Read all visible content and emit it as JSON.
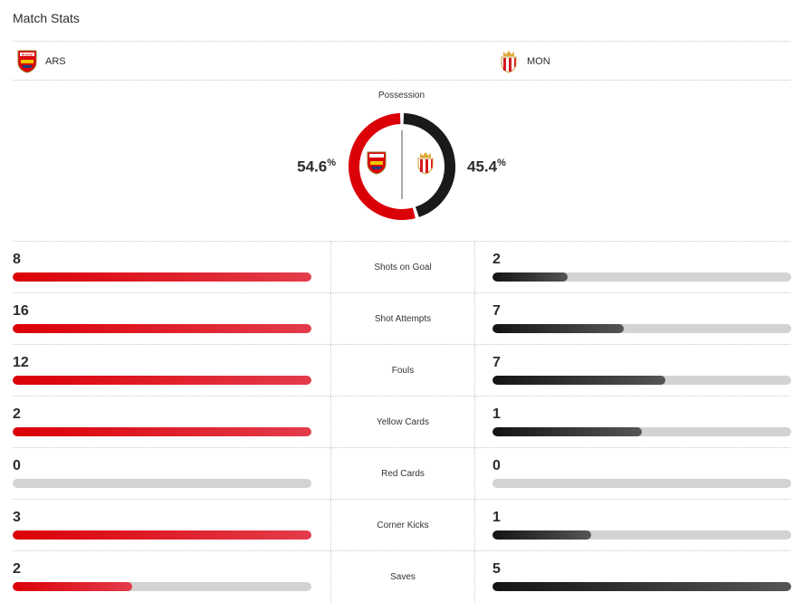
{
  "header": {
    "title": "Match Stats"
  },
  "teams": {
    "home": {
      "abbr": "ARS",
      "logo_icon": "arsenal-crest-icon",
      "logo_text": "Arsenal",
      "color": "#db0007"
    },
    "away": {
      "abbr": "MON",
      "logo_icon": "monaco-crest-icon",
      "color": "#1a1a1a"
    }
  },
  "possession": {
    "label": "Possession",
    "home_value": "54.6",
    "away_value": "45.4",
    "unit": "%",
    "home_fraction": 0.546
  },
  "stats": [
    {
      "label": "Shots on Goal",
      "home": "8",
      "away": "2",
      "home_fill": 1.0,
      "away_fill": 0.25
    },
    {
      "label": "Shot Attempts",
      "home": "16",
      "away": "7",
      "home_fill": 1.0,
      "away_fill": 0.44
    },
    {
      "label": "Fouls",
      "home": "12",
      "away": "7",
      "home_fill": 1.0,
      "away_fill": 0.58
    },
    {
      "label": "Yellow Cards",
      "home": "2",
      "away": "1",
      "home_fill": 1.0,
      "away_fill": 0.5
    },
    {
      "label": "Red Cards",
      "home": "0",
      "away": "0",
      "home_fill": 0,
      "away_fill": 0
    },
    {
      "label": "Corner Kicks",
      "home": "3",
      "away": "1",
      "home_fill": 1.0,
      "away_fill": 0.33
    },
    {
      "label": "Saves",
      "home": "2",
      "away": "5",
      "home_fill": 0.4,
      "away_fill": 1.0
    }
  ]
}
